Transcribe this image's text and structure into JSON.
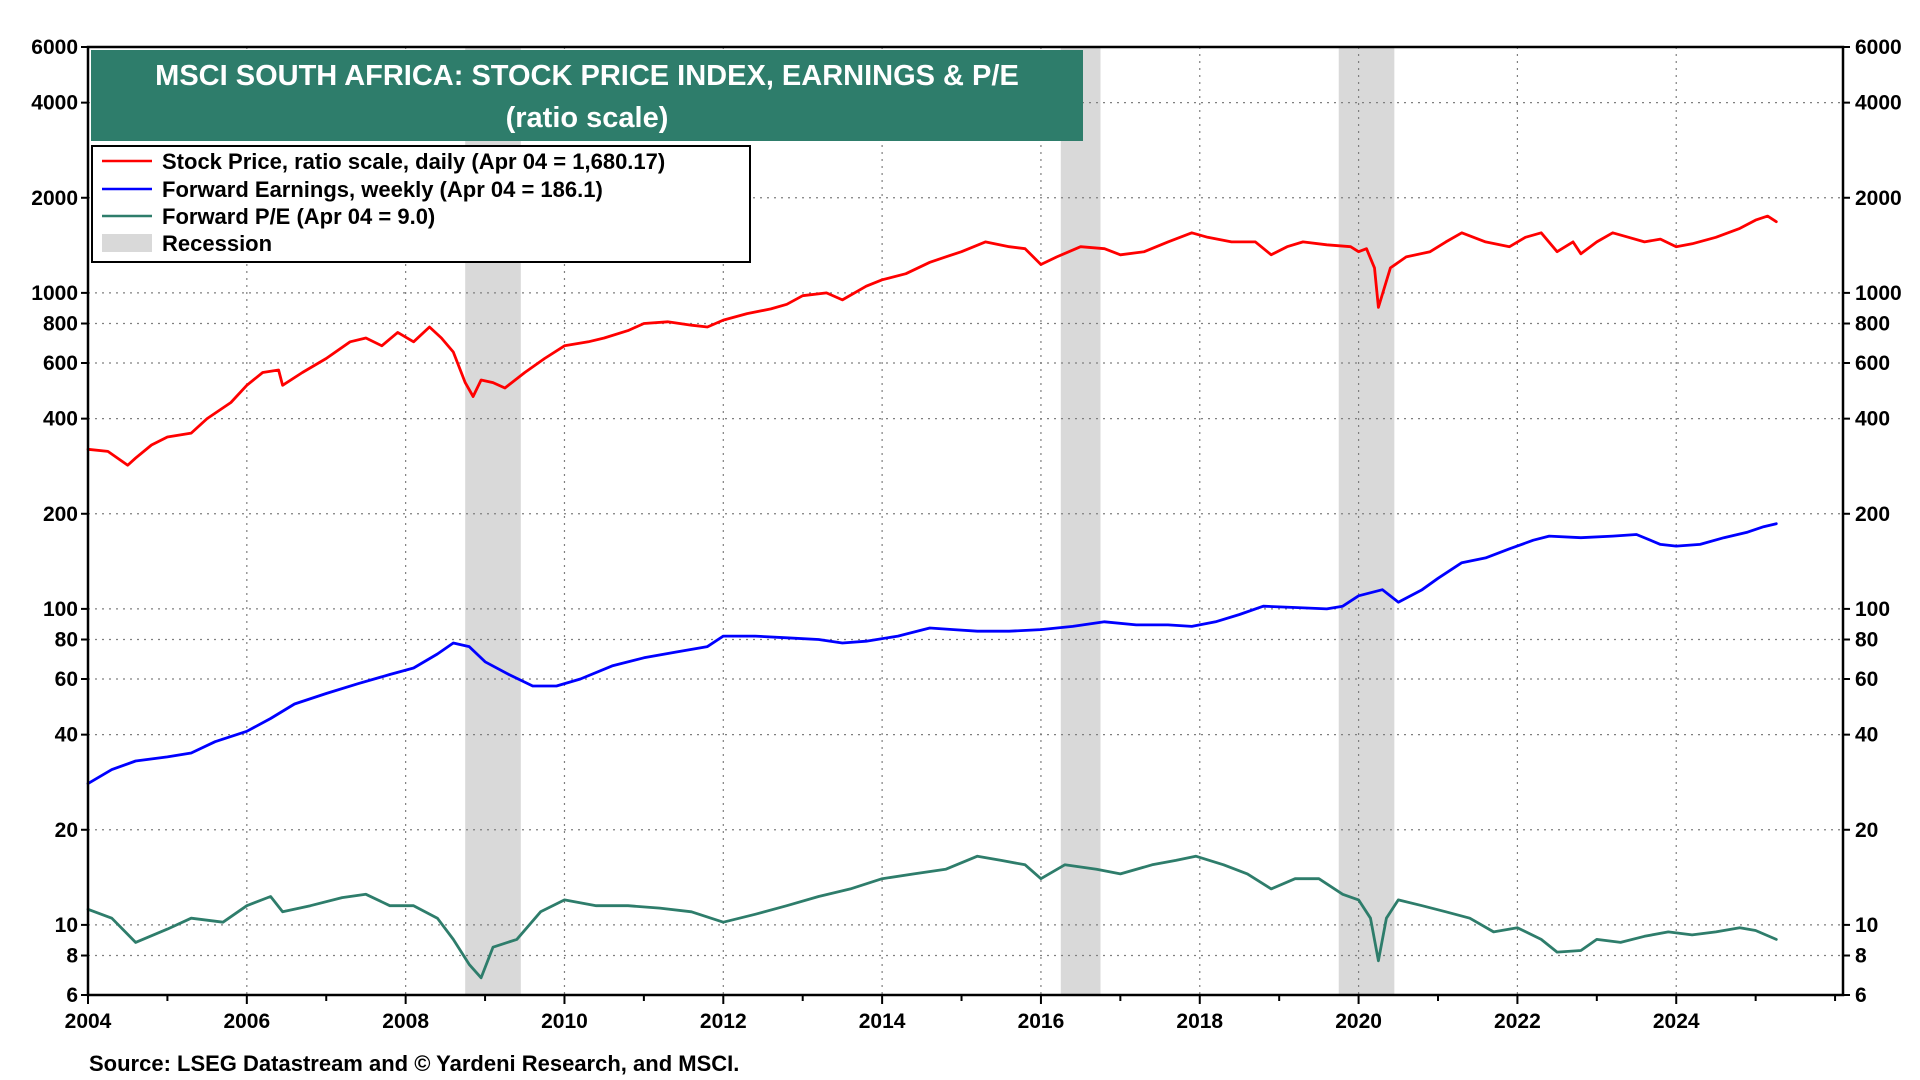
{
  "chart_data": {
    "type": "line",
    "title": "MSCI SOUTH AFRICA: STOCK PRICE INDEX, EARNINGS & P/E",
    "subtitle": "(ratio scale)",
    "source": "Source: LSEG Datastream and © Yardeni Research, and MSCI.",
    "y_scale": "log",
    "ylim": [
      6,
      6000
    ],
    "xlim": [
      2004,
      2026.1
    ],
    "y_ticks": [
      6000,
      4000,
      2000,
      1000,
      800,
      600,
      400,
      200,
      100,
      80,
      60,
      40,
      20,
      10,
      8,
      6
    ],
    "y_tick_labels": [
      "6000",
      "4000",
      "2000",
      "1000",
      "800",
      "600",
      "400",
      "200",
      "100",
      "80",
      "60",
      "40",
      "20",
      "10",
      "8",
      "6"
    ],
    "x_ticks": [
      2004,
      2006,
      2008,
      2010,
      2012,
      2014,
      2016,
      2018,
      2020,
      2022,
      2024
    ],
    "x_tick_labels": [
      "2004",
      "2006",
      "2008",
      "2010",
      "2012",
      "2014",
      "2016",
      "2018",
      "2020",
      "2022",
      "2024"
    ],
    "grid": true,
    "legend_position": "top-left",
    "recessions": [
      {
        "start": 2008.75,
        "end": 2009.45
      },
      {
        "start": 2016.25,
        "end": 2016.75
      },
      {
        "start": 2019.75,
        "end": 2020.45
      }
    ],
    "recession_label": "Recession",
    "recession_color": "#d9d9d9",
    "series": [
      {
        "name": "Stock Price, ratio scale, daily (Apr 04 = 1,680.17)",
        "color": "#ff0000",
        "x": [
          2004.0,
          2004.25,
          2004.5,
          2004.6,
          2004.8,
          2005.0,
          2005.3,
          2005.5,
          2005.8,
          2006.0,
          2006.2,
          2006.4,
          2006.45,
          2006.7,
          2007.0,
          2007.3,
          2007.5,
          2007.7,
          2007.9,
          2008.1,
          2008.3,
          2008.45,
          2008.6,
          2008.75,
          2008.85,
          2008.95,
          2009.1,
          2009.25,
          2009.5,
          2009.75,
          2010.0,
          2010.3,
          2010.5,
          2010.8,
          2011.0,
          2011.3,
          2011.6,
          2011.8,
          2012.0,
          2012.3,
          2012.6,
          2012.8,
          2013.0,
          2013.3,
          2013.5,
          2013.8,
          2014.0,
          2014.3,
          2014.6,
          2014.8,
          2015.0,
          2015.3,
          2015.6,
          2015.8,
          2016.0,
          2016.2,
          2016.5,
          2016.8,
          2017.0,
          2017.3,
          2017.6,
          2017.9,
          2018.1,
          2018.4,
          2018.7,
          2018.9,
          2019.1,
          2019.3,
          2019.6,
          2019.9,
          2020.0,
          2020.1,
          2020.2,
          2020.25,
          2020.4,
          2020.6,
          2020.9,
          2021.1,
          2021.3,
          2021.6,
          2021.9,
          2022.1,
          2022.3,
          2022.5,
          2022.7,
          2022.8,
          2023.0,
          2023.2,
          2023.4,
          2023.6,
          2023.8,
          2024.0,
          2024.2,
          2024.5,
          2024.8,
          2025.0,
          2025.15,
          2025.26
        ],
        "values": [
          320,
          315,
          285,
          300,
          330,
          350,
          360,
          400,
          450,
          510,
          560,
          570,
          510,
          560,
          620,
          700,
          720,
          680,
          750,
          700,
          780,
          720,
          650,
          520,
          470,
          530,
          520,
          500,
          560,
          620,
          680,
          700,
          720,
          760,
          800,
          810,
          790,
          780,
          820,
          860,
          890,
          920,
          980,
          1000,
          950,
          1050,
          1100,
          1150,
          1250,
          1300,
          1350,
          1450,
          1400,
          1380,
          1230,
          1300,
          1400,
          1380,
          1320,
          1350,
          1450,
          1550,
          1500,
          1450,
          1450,
          1320,
          1400,
          1450,
          1420,
          1400,
          1350,
          1380,
          1200,
          900,
          1200,
          1300,
          1350,
          1450,
          1550,
          1450,
          1400,
          1500,
          1550,
          1350,
          1450,
          1330,
          1450,
          1550,
          1500,
          1450,
          1480,
          1400,
          1430,
          1500,
          1600,
          1700,
          1750,
          1680
        ]
      },
      {
        "name": "Forward Earnings, weekly (Apr 04 = 186.1)",
        "color": "#0000ff",
        "x": [
          2004.0,
          2004.3,
          2004.6,
          2005.0,
          2005.3,
          2005.6,
          2006.0,
          2006.3,
          2006.6,
          2007.0,
          2007.4,
          2007.8,
          2008.1,
          2008.4,
          2008.6,
          2008.8,
          2009.0,
          2009.3,
          2009.6,
          2009.9,
          2010.2,
          2010.6,
          2011.0,
          2011.4,
          2011.8,
          2012.0,
          2012.4,
          2012.8,
          2013.2,
          2013.5,
          2013.8,
          2014.2,
          2014.6,
          2014.9,
          2015.2,
          2015.6,
          2016.0,
          2016.4,
          2016.8,
          2017.2,
          2017.6,
          2017.9,
          2018.2,
          2018.5,
          2018.8,
          2019.2,
          2019.6,
          2019.8,
          2020.0,
          2020.3,
          2020.5,
          2020.8,
          2021.0,
          2021.3,
          2021.6,
          2021.9,
          2022.2,
          2022.4,
          2022.8,
          2023.2,
          2023.5,
          2023.8,
          2024.0,
          2024.3,
          2024.6,
          2024.9,
          2025.1,
          2025.26
        ],
        "values": [
          28,
          31,
          33,
          34,
          35,
          38,
          41,
          45,
          50,
          54,
          58,
          62,
          65,
          72,
          78,
          76,
          68,
          62,
          57,
          57,
          60,
          66,
          70,
          73,
          76,
          82,
          82,
          81,
          80,
          78,
          79,
          82,
          87,
          86,
          85,
          85,
          86,
          88,
          91,
          89,
          89,
          88,
          91,
          96,
          102,
          101,
          100,
          102,
          110,
          115,
          105,
          115,
          125,
          140,
          145,
          155,
          165,
          170,
          168,
          170,
          172,
          160,
          158,
          160,
          168,
          175,
          182,
          186
        ]
      },
      {
        "name": "Forward P/E (Apr 04 = 9.0)",
        "color": "#2e7d6b",
        "x": [
          2004.0,
          2004.3,
          2004.6,
          2005.0,
          2005.3,
          2005.7,
          2006.0,
          2006.3,
          2006.45,
          2006.8,
          2007.2,
          2007.5,
          2007.8,
          2008.1,
          2008.4,
          2008.6,
          2008.8,
          2008.95,
          2009.1,
          2009.4,
          2009.7,
          2010.0,
          2010.4,
          2010.8,
          2011.2,
          2011.6,
          2012.0,
          2012.4,
          2012.8,
          2013.2,
          2013.6,
          2014.0,
          2014.4,
          2014.8,
          2015.2,
          2015.5,
          2015.8,
          2016.0,
          2016.3,
          2016.7,
          2017.0,
          2017.4,
          2017.7,
          2017.95,
          2018.3,
          2018.6,
          2018.9,
          2019.2,
          2019.5,
          2019.8,
          2020.0,
          2020.15,
          2020.25,
          2020.35,
          2020.5,
          2020.8,
          2021.1,
          2021.4,
          2021.7,
          2022.0,
          2022.3,
          2022.5,
          2022.8,
          2023.0,
          2023.3,
          2023.6,
          2023.9,
          2024.2,
          2024.5,
          2024.8,
          2025.0,
          2025.26
        ],
        "values": [
          11.2,
          10.5,
          8.8,
          9.7,
          10.5,
          10.2,
          11.5,
          12.3,
          11.0,
          11.5,
          12.2,
          12.5,
          11.5,
          11.5,
          10.5,
          9.0,
          7.5,
          6.8,
          8.5,
          9.0,
          11.0,
          12.0,
          11.5,
          11.5,
          11.3,
          11.0,
          10.2,
          10.8,
          11.5,
          12.3,
          13.0,
          14.0,
          14.5,
          15.0,
          16.5,
          16.0,
          15.5,
          14.0,
          15.5,
          15.0,
          14.5,
          15.5,
          16.0,
          16.5,
          15.5,
          14.5,
          13.0,
          14.0,
          14.0,
          12.5,
          12.0,
          10.5,
          7.7,
          10.5,
          12.0,
          11.5,
          11.0,
          10.5,
          9.5,
          9.8,
          9.0,
          8.2,
          8.3,
          9.0,
          8.8,
          9.2,
          9.5,
          9.3,
          9.5,
          9.8,
          9.6,
          9.0
        ]
      }
    ]
  }
}
